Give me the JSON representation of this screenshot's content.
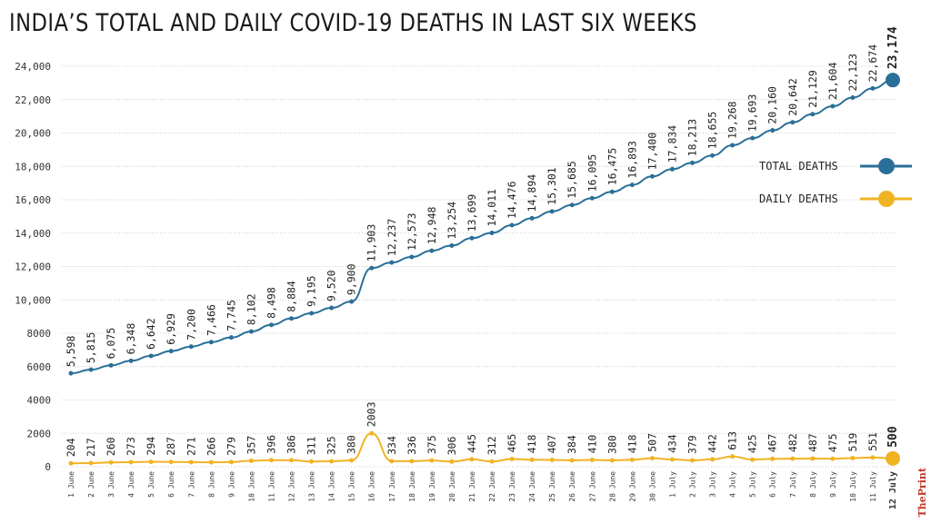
{
  "title": "INDIA’S TOTAL AND DAILY COVID-19 DEATHS IN LAST SIX WEEKS",
  "colors": {
    "total": "#2a6f97",
    "daily": "#f0b323",
    "grid": "#cccccc",
    "text": "#333333"
  },
  "logo": "ThePrint",
  "chart_data": {
    "type": "line",
    "title": "INDIA’S TOTAL AND DAILY COVID-19 DEATHS IN LAST SIX WEEKS",
    "xlabel": "",
    "ylabel": "",
    "ylim": [
      0,
      24000
    ],
    "yticks": [
      "0",
      "2000",
      "4000",
      "6000",
      "8000",
      "10,000",
      "12,000",
      "14,000",
      "16,000",
      "18,000",
      "20,000",
      "22,000",
      "24,000"
    ],
    "categories": [
      "1 June",
      "2 June",
      "3 June",
      "4 June",
      "5 June",
      "6 June",
      "7 June",
      "8 June",
      "9 June",
      "10 June",
      "11 June",
      "12 June",
      "13 June",
      "14 June",
      "15 June",
      "16 June",
      "17 June",
      "18 June",
      "19 June",
      "20 June",
      "21 June",
      "22 June",
      "23 June",
      "24 June",
      "25 June",
      "26 June",
      "27 June",
      "28 June",
      "29 June",
      "30 June",
      "1 July",
      "2 July",
      "3 July",
      "4 July",
      "5 July",
      "6 July",
      "7 July",
      "8 July",
      "9 July",
      "10 July",
      "11 July",
      "12 July"
    ],
    "legend": [
      "TOTAL DEATHS",
      "DAILY DEATHS"
    ],
    "series": [
      {
        "name": "TOTAL DEATHS",
        "values": [
          5598,
          5815,
          6075,
          6348,
          6642,
          6929,
          7200,
          7466,
          7745,
          8102,
          8498,
          8884,
          9195,
          9520,
          9900,
          11903,
          12237,
          12573,
          12948,
          13254,
          13699,
          14011,
          14476,
          14894,
          15301,
          15685,
          16095,
          16475,
          16893,
          17400,
          17834,
          18213,
          18655,
          19268,
          19693,
          20160,
          20642,
          21129,
          21604,
          22123,
          22674,
          23174
        ],
        "labels": [
          "5,598",
          "5,815",
          "6,075",
          "6,348",
          "6,642",
          "6,929",
          "7,200",
          "7,466",
          "7,745",
          "8,102",
          "8,498",
          "8,884",
          "9,195",
          "9,520",
          "9,900",
          "11,903",
          "12,237",
          "12,573",
          "12,948",
          "13,254",
          "13,699",
          "14,011",
          "14,476",
          "14,894",
          "15,301",
          "15,685",
          "16,095",
          "16,475",
          "16,893",
          "17,400",
          "17,834",
          "18,213",
          "18,655",
          "19,268",
          "19,693",
          "20,160",
          "20,642",
          "21,129",
          "21,604",
          "22,123",
          "22,674",
          "23,174"
        ]
      },
      {
        "name": "DAILY DEATHS",
        "values": [
          204,
          217,
          260,
          273,
          294,
          287,
          271,
          266,
          279,
          357,
          396,
          386,
          311,
          325,
          380,
          2003,
          334,
          336,
          375,
          306,
          445,
          312,
          465,
          418,
          407,
          384,
          410,
          380,
          418,
          507,
          434,
          379,
          442,
          613,
          425,
          467,
          482,
          487,
          475,
          519,
          551,
          500
        ],
        "labels": [
          "204",
          "217",
          "260",
          "273",
          "294",
          "287",
          "271",
          "266",
          "279",
          "357",
          "396",
          "386",
          "311",
          "325",
          "380",
          "2003",
          "334",
          "336",
          "375",
          "306",
          "445",
          "312",
          "465",
          "418",
          "407",
          "384",
          "410",
          "380",
          "418",
          "507",
          "434",
          "379",
          "442",
          "613",
          "425",
          "467",
          "482",
          "487",
          "475",
          "519",
          "551",
          "500"
        ]
      }
    ]
  }
}
